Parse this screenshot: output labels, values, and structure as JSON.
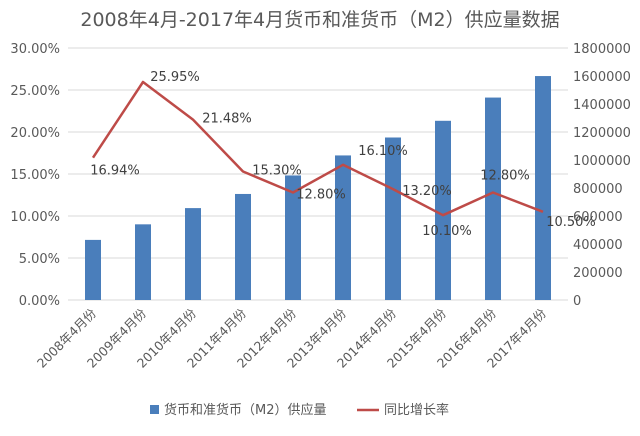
{
  "chart_data": {
    "type": "bar+line",
    "title": "2008年4月-2017年4月货币和准货币（M2）供应量数据",
    "categories": [
      "2008年4月份",
      "2009年4月份",
      "2010年4月份",
      "2011年4月份",
      "2012年4月份",
      "2013年4月份",
      "2014年4月份",
      "2015年4月份",
      "2016年4月份",
      "2017年4月份"
    ],
    "series": [
      {
        "name": "货币和准货币（M2）供应量",
        "type": "bar",
        "axis": "right",
        "color": "#4a7ebb",
        "values": [
          429300,
          540500,
          656400,
          757400,
          889600,
          1032600,
          1160700,
          1280000,
          1446000,
          1599600
        ]
      },
      {
        "name": "同比增长率",
        "type": "line",
        "axis": "left",
        "color": "#be4b48",
        "values": [
          16.94,
          25.95,
          21.48,
          15.3,
          12.8,
          16.1,
          13.2,
          10.1,
          12.8,
          10.5
        ],
        "labels": [
          "16.94%",
          "25.95%",
          "21.48%",
          "15.30%",
          "12.80%",
          "16.10%",
          "13.20%",
          "10.10%",
          "12.80%",
          "10.50%"
        ]
      }
    ],
    "left_axis": {
      "min": 0,
      "max": 30,
      "ticks": [
        "0.00%",
        "5.00%",
        "10.00%",
        "15.00%",
        "20.00%",
        "25.00%",
        "30.00%"
      ]
    },
    "right_axis": {
      "min": 0,
      "max": 1800000,
      "ticks": [
        "0",
        "200000",
        "400000",
        "600000",
        "800000",
        "1000000",
        "1200000",
        "1400000",
        "1600000",
        "1800000"
      ]
    },
    "grid": true,
    "legend_position": "bottom"
  }
}
